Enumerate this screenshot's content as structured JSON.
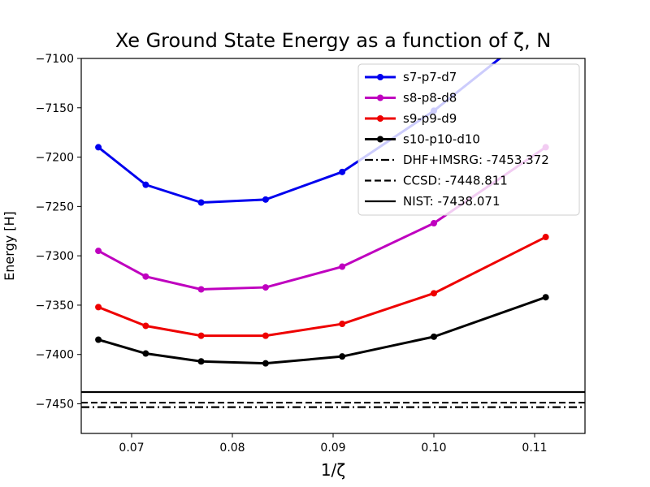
{
  "chart_data": {
    "type": "line",
    "title": "Xe Ground State Energy as a function of ζ, N",
    "xlabel": "1/ζ",
    "ylabel": "Energy [H]",
    "xlim": [
      0.065,
      0.115
    ],
    "ylim": [
      -7480,
      -7100
    ],
    "xticks": [
      0.07,
      0.08,
      0.09,
      0.1,
      0.11
    ],
    "xtick_labels": [
      "0.07",
      "0.08",
      "0.09",
      "0.10",
      "0.11"
    ],
    "yticks": [
      -7450,
      -7400,
      -7350,
      -7300,
      -7250,
      -7200,
      -7150,
      -7100
    ],
    "ytick_labels": [
      "−7450",
      "−7400",
      "−7350",
      "−7300",
      "−7250",
      "−7200",
      "−7150",
      "−7100"
    ],
    "x": [
      0.0667,
      0.0714,
      0.0769,
      0.0833,
      0.0909,
      0.1,
      0.1111
    ],
    "series": [
      {
        "name": "s7-p7-d7",
        "color": "#0000ee",
        "values": [
          -7190,
          -7228,
          -7246,
          -7243,
          -7215,
          -7153,
          -7063
        ]
      },
      {
        "name": "s8-p8-d8",
        "color": "#bf00bf",
        "values": [
          -7295,
          -7321,
          -7334,
          -7332,
          -7311,
          -7267,
          -7190
        ]
      },
      {
        "name": "s9-p9-d9",
        "color": "#ee0000",
        "values": [
          -7352,
          -7371,
          -7381,
          -7381,
          -7369,
          -7338,
          -7281
        ]
      },
      {
        "name": "s10-p10-d10",
        "color": "#000000",
        "values": [
          -7385,
          -7399,
          -7407,
          -7409,
          -7402,
          -7382,
          -7342
        ]
      }
    ],
    "reference_lines": [
      {
        "name": "DHF+IMSRG: -7453.372",
        "value": -7453.372,
        "style": "dashdot"
      },
      {
        "name": "CCSD: -7448.811",
        "value": -7448.811,
        "style": "dashed"
      },
      {
        "name": "NIST: -7438.071",
        "value": -7438.071,
        "style": "solid"
      }
    ],
    "legend": "top-right",
    "grid": false
  }
}
